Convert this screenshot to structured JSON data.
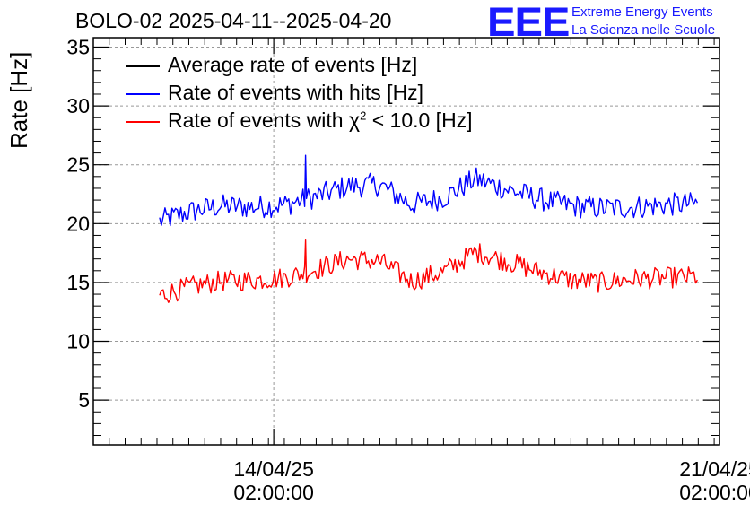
{
  "header": {
    "title": "BOLO-02 2025-04-11--2025-04-20",
    "logo_text": "EEE",
    "logo_line1": "Extreme Energy Events",
    "logo_line2": "La Scienza nelle Scuole",
    "logo_color": "#1a1aff"
  },
  "legend": {
    "items": [
      {
        "label": "Average rate of events [Hz]",
        "color": "#000000"
      },
      {
        "label": "Rate of events with hits [Hz]",
        "color": "#0000ff"
      },
      {
        "label_prefix": "Rate of events with χ",
        "label_sup": "2",
        "label_suffix": " < 10.0 [Hz]",
        "color": "#ff0000"
      }
    ]
  },
  "chart_data": {
    "type": "line",
    "title": "BOLO-02 2025-04-11--2025-04-20",
    "ylabel": "Rate [Hz]",
    "xlabel": "",
    "ylim": [
      1.2,
      35.8
    ],
    "yticks": [
      5,
      10,
      15,
      20,
      25,
      30,
      35
    ],
    "xlim": [
      "2025-04-11 06:00",
      "2025-04-21 02:00"
    ],
    "xticks": [
      {
        "date": "14/04/25",
        "time": "02:00:00",
        "at": "2025-04-14 02:00"
      },
      {
        "date": "21/04/25",
        "time": "02:00:00",
        "at": "2025-04-21 02:00"
      }
    ],
    "grid": true,
    "x": [
      "2025-04-12 07:00",
      "2025-04-12 18:00",
      "2025-04-13 06:00",
      "2025-04-13 18:00",
      "2025-04-14 06:00",
      "2025-04-14 18:00",
      "2025-04-15 06:00",
      "2025-04-15 18:00",
      "2025-04-16 06:00",
      "2025-04-16 18:00",
      "2025-04-17 06:00",
      "2025-04-17 18:00",
      "2025-04-18 06:00",
      "2025-04-18 18:00",
      "2025-04-19 06:00",
      "2025-04-19 18:00",
      "2025-04-20 06:00",
      "2025-04-20 18:00"
    ],
    "series": [
      {
        "name": "Rate of events with hits [Hz]",
        "color": "#0000ff",
        "values": [
          20.2,
          21.0,
          21.5,
          21.4,
          21.6,
          22.3,
          23.2,
          23.3,
          21.6,
          22.2,
          23.8,
          22.9,
          22.1,
          21.5,
          21.3,
          21.4,
          21.6,
          21.7
        ],
        "noise": 1.0,
        "spikes": [
          {
            "at": "2025-04-14 14:00",
            "value": 25.8
          }
        ]
      },
      {
        "name": "Rate of events with χ2 < 10.0 [Hz]",
        "color": "#ff0000",
        "values": [
          13.9,
          14.6,
          15.1,
          15.2,
          15.4,
          16.1,
          17.0,
          16.8,
          15.1,
          15.9,
          17.6,
          16.8,
          15.9,
          15.2,
          15.0,
          15.3,
          15.4,
          15.5
        ],
        "noise": 0.9,
        "spikes": [
          {
            "at": "2025-04-14 14:00",
            "value": 18.6
          }
        ]
      }
    ]
  }
}
